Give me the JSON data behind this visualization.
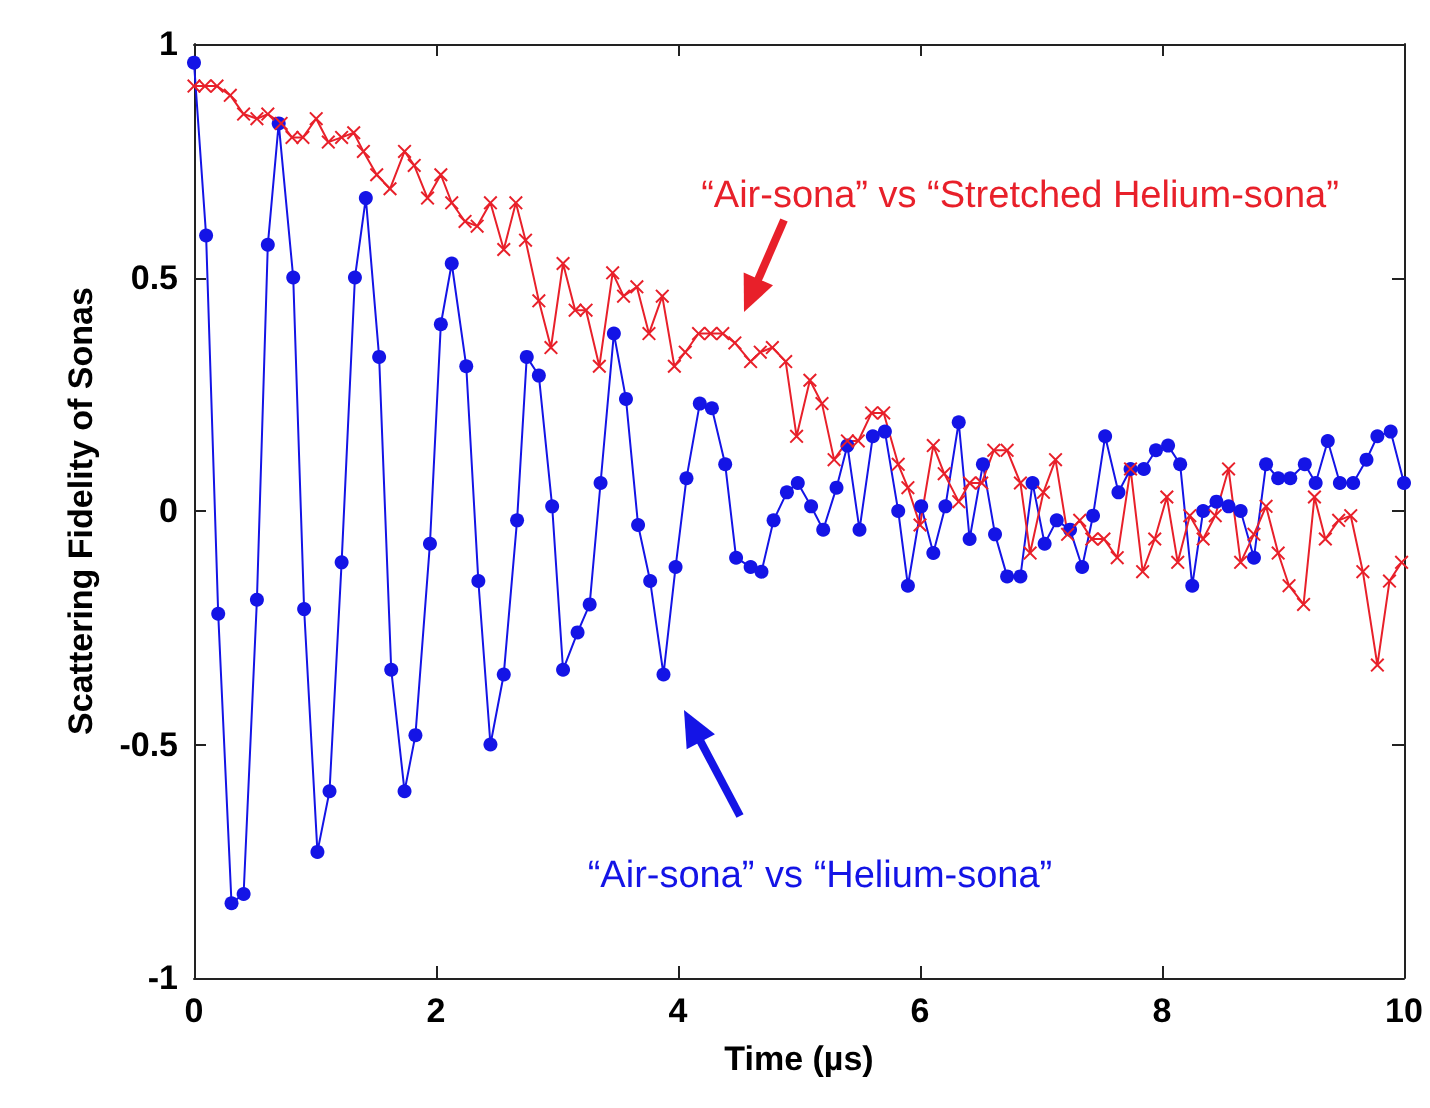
{
  "chart_data": {
    "type": "line",
    "xlabel": "Time (µs)",
    "ylabel": "Scattering Fidelity of Sonas",
    "xlim": [
      0,
      10
    ],
    "ylim": [
      -1,
      1
    ],
    "xticks": [
      0,
      2,
      4,
      6,
      8,
      10
    ],
    "yticks": [
      -1,
      -0.5,
      0,
      0.5,
      1
    ],
    "grid": false,
    "line_style": "solid",
    "series": [
      {
        "color": "#1414e6",
        "marker": "circle",
        "x": [
          0,
          0.1,
          0.2,
          0.31,
          0.41,
          0.52,
          0.61,
          0.7,
          0.82,
          0.91,
          1.02,
          1.12,
          1.22,
          1.33,
          1.42,
          1.53,
          1.63,
          1.74,
          1.83,
          1.95,
          2.04,
          2.13,
          2.25,
          2.35,
          2.45,
          2.56,
          2.67,
          2.75,
          2.85,
          2.96,
          3.05,
          3.17,
          3.27,
          3.36,
          3.47,
          3.57,
          3.67,
          3.77,
          3.88,
          3.98,
          4.07,
          4.18,
          4.28,
          4.39,
          4.48,
          4.6,
          4.69,
          4.79,
          4.9,
          4.99,
          5.1,
          5.2,
          5.31,
          5.4,
          5.5,
          5.61,
          5.71,
          5.82,
          5.9,
          6.01,
          6.11,
          6.21,
          6.32,
          6.41,
          6.52,
          6.62,
          6.72,
          6.83,
          6.93,
          7.03,
          7.13,
          7.24,
          7.34,
          7.43,
          7.53,
          7.64,
          7.74,
          7.85,
          7.95,
          8.05,
          8.15,
          8.25,
          8.34,
          8.45,
          8.55,
          8.65,
          8.76,
          8.86,
          8.96,
          9.06,
          9.18,
          9.27,
          9.37,
          9.47,
          9.58,
          9.69,
          9.78,
          9.89,
          10
        ],
        "values": [
          0.96,
          0.59,
          -0.22,
          -0.84,
          -0.82,
          -0.19,
          0.57,
          0.83,
          0.5,
          -0.21,
          -0.73,
          -0.6,
          -0.11,
          0.5,
          0.67,
          0.33,
          -0.34,
          -0.6,
          -0.48,
          -0.07,
          0.4,
          0.53,
          0.31,
          -0.15,
          -0.5,
          -0.35,
          -0.02,
          0.33,
          0.29,
          0.01,
          -0.34,
          -0.26,
          -0.2,
          0.06,
          0.38,
          0.24,
          -0.03,
          -0.15,
          -0.35,
          -0.12,
          0.07,
          0.23,
          0.22,
          0.1,
          -0.1,
          -0.12,
          -0.13,
          -0.02,
          0.04,
          0.06,
          0.01,
          -0.04,
          0.05,
          0.14,
          -0.04,
          0.16,
          0.17,
          0,
          -0.16,
          0.01,
          -0.09,
          0.01,
          0.19,
          -0.06,
          0.1,
          -0.05,
          -0.14,
          -0.14,
          0.06,
          -0.07,
          -0.02,
          -0.04,
          -0.12,
          -0.01,
          0.16,
          0.04,
          0.09,
          0.09,
          0.13,
          0.14,
          0.1,
          -0.16,
          0,
          0.02,
          0.01,
          0,
          -0.1,
          0.1,
          0.07,
          0.07,
          0.1,
          0.06,
          0.15,
          0.06,
          0.06,
          0.11,
          0.16,
          0.17,
          0.06
        ]
      },
      {
        "color": "#e8202a",
        "marker": "cross",
        "x": [
          0,
          0.09,
          0.19,
          0.3,
          0.41,
          0.52,
          0.61,
          0.72,
          0.81,
          0.9,
          1.01,
          1.11,
          1.22,
          1.32,
          1.4,
          1.51,
          1.62,
          1.74,
          1.82,
          1.93,
          2.04,
          2.13,
          2.24,
          2.34,
          2.45,
          2.56,
          2.66,
          2.74,
          2.85,
          2.95,
          3.05,
          3.15,
          3.24,
          3.35,
          3.46,
          3.55,
          3.66,
          3.76,
          3.87,
          3.97,
          4.06,
          4.17,
          4.27,
          4.37,
          4.47,
          4.6,
          4.68,
          4.78,
          4.89,
          4.98,
          5.09,
          5.19,
          5.29,
          5.4,
          5.49,
          5.6,
          5.7,
          5.82,
          5.9,
          6,
          6.11,
          6.2,
          6.32,
          6.41,
          6.51,
          6.61,
          6.72,
          6.83,
          6.91,
          7.02,
          7.12,
          7.22,
          7.32,
          7.42,
          7.52,
          7.63,
          7.74,
          7.84,
          7.94,
          8.04,
          8.13,
          8.23,
          8.34,
          8.44,
          8.55,
          8.65,
          8.76,
          8.86,
          8.96,
          9.05,
          9.17,
          9.26,
          9.35,
          9.46,
          9.56,
          9.66,
          9.78,
          9.88,
          9.98
        ],
        "values": [
          0.91,
          0.91,
          0.91,
          0.89,
          0.85,
          0.84,
          0.85,
          0.83,
          0.8,
          0.8,
          0.84,
          0.79,
          0.8,
          0.81,
          0.77,
          0.72,
          0.69,
          0.77,
          0.74,
          0.67,
          0.72,
          0.66,
          0.62,
          0.61,
          0.66,
          0.56,
          0.66,
          0.58,
          0.45,
          0.35,
          0.53,
          0.43,
          0.43,
          0.31,
          0.51,
          0.46,
          0.48,
          0.38,
          0.46,
          0.31,
          0.34,
          0.38,
          0.38,
          0.38,
          0.36,
          0.32,
          0.34,
          0.35,
          0.32,
          0.16,
          0.28,
          0.23,
          0.11,
          0.15,
          0.15,
          0.21,
          0.21,
          0.1,
          0.05,
          -0.03,
          0.14,
          0.08,
          0.02,
          0.06,
          0.06,
          0.13,
          0.13,
          0.06,
          -0.09,
          0.04,
          0.11,
          -0.05,
          -0.02,
          -0.06,
          -0.06,
          -0.1,
          0.09,
          -0.13,
          -0.06,
          0.03,
          -0.11,
          -0.01,
          -0.06,
          -0.01,
          0.09,
          -0.11,
          -0.05,
          0.01,
          -0.09,
          -0.16,
          -0.2,
          0.03,
          -0.06,
          -0.02,
          -0.01,
          -0.13,
          -0.33,
          -0.15,
          -0.11
        ]
      }
    ],
    "annotations": [
      "“Air-sona” vs “Helium-sona”",
      "“Air-sona” vs “Stretched Helium-sona”"
    ]
  }
}
